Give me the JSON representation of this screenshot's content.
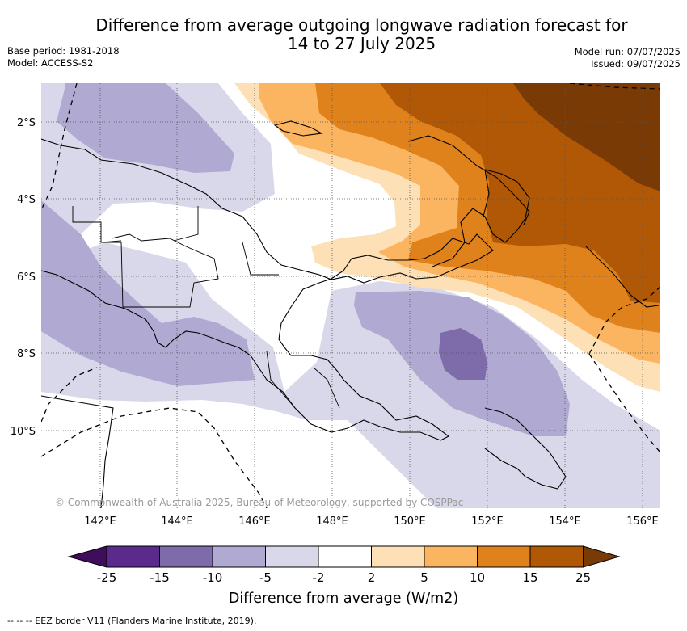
{
  "header": {
    "title_line1": "Difference from average outgoing longwave radiation forecast for",
    "title_line2": "14 to 27 July 2025",
    "base_period": "Base period: 1981-2018",
    "model": "Model: ACCESS-S2",
    "model_run": "Model run: 07/07/2025",
    "issued": "Issued: 09/07/2025"
  },
  "map": {
    "latitude_labels": [
      "2°S",
      "4°S",
      "6°S",
      "8°S",
      "10°S"
    ],
    "longitude_labels": [
      "142°E",
      "144°E",
      "146°E",
      "148°E",
      "150°E",
      "152°E",
      "154°E",
      "156°E"
    ],
    "copyright": "© Commonwealth of Australia 2025, Bureau of Meteorology, supported by COSPPac"
  },
  "colorbar": {
    "ticks": [
      "-25",
      "-15",
      "-10",
      "-5",
      "-2",
      "2",
      "5",
      "10",
      "15",
      "25"
    ],
    "colors": [
      "#3f0d5c",
      "#5a2a8c",
      "#7e6ba9",
      "#b0a9d2",
      "#d8d8ea",
      "#ffffff",
      "#fee0b6",
      "#fbb45f",
      "#e0821c",
      "#b05806",
      "#7a3a06"
    ],
    "label": "Difference from average (W/m2)"
  },
  "footer": {
    "legend": "-- -- -- EEZ border V11 (Flanders Marine Institute, 2019)."
  }
}
